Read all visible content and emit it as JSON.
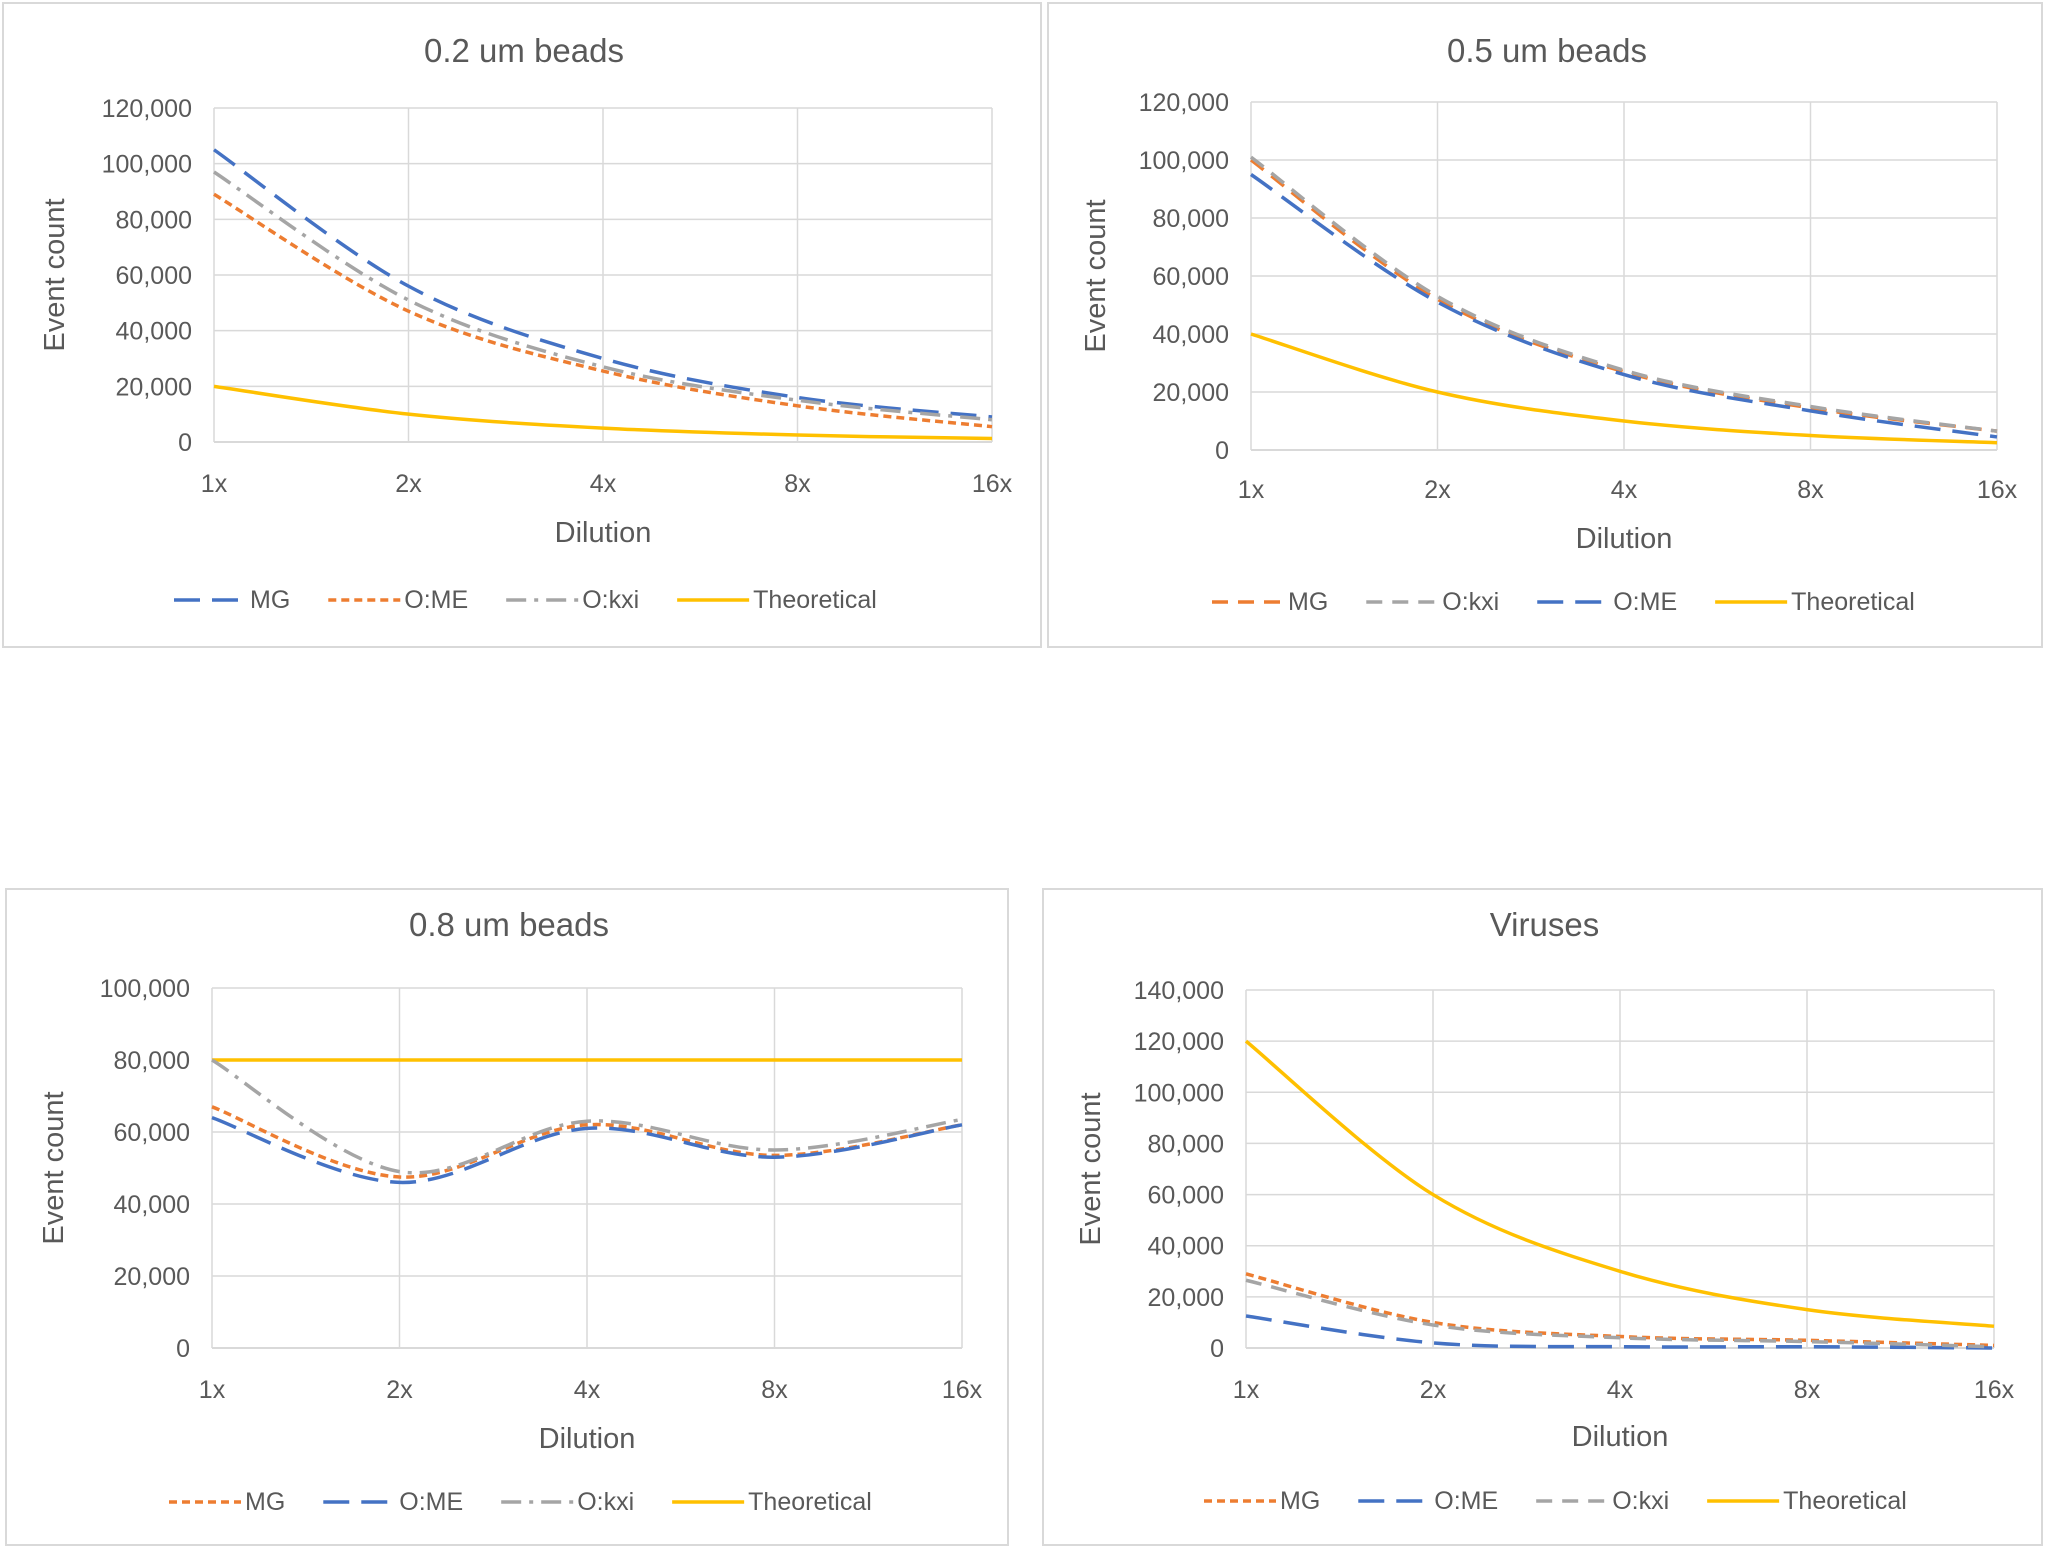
{
  "colors": {
    "blue": "#4472c4",
    "orange": "#ed7d31",
    "gray": "#a5a5a5",
    "yellow": "#ffc000",
    "grid": "#d9d9d9",
    "text": "#595959"
  },
  "chart_data": [
    {
      "type": "line",
      "title": "0.2 um beads",
      "xlabel": "Dilution",
      "ylabel": "Event count",
      "categories": [
        "1x",
        "2x",
        "4x",
        "8x",
        "16x"
      ],
      "ylim": [
        0,
        120000
      ],
      "yticks": [
        0,
        20000,
        40000,
        60000,
        80000,
        100000,
        120000
      ],
      "ytick_labels": [
        "0",
        "20,000",
        "40,000",
        "60,000",
        "80,000",
        "100,000",
        "120,000"
      ],
      "legend_position": "bottom",
      "series": [
        {
          "name": "MG",
          "color": "blue",
          "dash": "long",
          "values": [
            105000,
            56000,
            30000,
            16000,
            9000
          ]
        },
        {
          "name": "O:ME",
          "color": "orange",
          "dash": "short",
          "values": [
            89000,
            47000,
            25500,
            13000,
            5500
          ]
        },
        {
          "name": "O:kxi",
          "color": "gray",
          "dash": "dashdot",
          "values": [
            97000,
            51000,
            27000,
            15000,
            8000
          ]
        },
        {
          "name": "Theoretical",
          "color": "yellow",
          "dash": "solid",
          "values": [
            20000,
            10000,
            5000,
            2500,
            1250
          ]
        }
      ]
    },
    {
      "type": "line",
      "title": "0.5 um beads",
      "xlabel": "Dilution",
      "ylabel": "Event count",
      "categories": [
        "1x",
        "2x",
        "4x",
        "8x",
        "16x"
      ],
      "ylim": [
        0,
        120000
      ],
      "yticks": [
        0,
        20000,
        40000,
        60000,
        80000,
        100000,
        120000
      ],
      "ytick_labels": [
        "0",
        "20,000",
        "40,000",
        "60,000",
        "80,000",
        "100,000",
        "120,000"
      ],
      "legend_position": "bottom",
      "series": [
        {
          "name": "MG",
          "color": "orange",
          "dash": "medium",
          "values": [
            100000,
            52000,
            27000,
            14500,
            6500
          ]
        },
        {
          "name": "O:kxi",
          "color": "gray",
          "dash": "medium",
          "values": [
            101000,
            53000,
            27500,
            15000,
            6500
          ]
        },
        {
          "name": "O:ME",
          "color": "blue",
          "dash": "long",
          "values": [
            95000,
            51000,
            26000,
            13500,
            4500
          ]
        },
        {
          "name": "Theoretical",
          "color": "yellow",
          "dash": "solid",
          "values": [
            40000,
            20000,
            10000,
            5000,
            2500
          ]
        }
      ]
    },
    {
      "type": "line",
      "title": "0.8 um beads",
      "xlabel": "Dilution",
      "ylabel": "Event count",
      "categories": [
        "1x",
        "2x",
        "4x",
        "8x",
        "16x"
      ],
      "ylim": [
        0,
        100000
      ],
      "yticks": [
        0,
        20000,
        40000,
        60000,
        80000,
        100000
      ],
      "ytick_labels": [
        "0",
        "20,000",
        "40,000",
        "60,000",
        "80,000",
        "100,000"
      ],
      "legend_position": "bottom",
      "series": [
        {
          "name": "MG",
          "color": "orange",
          "dash": "short",
          "values": [
            67000,
            47500,
            62000,
            53500,
            62000
          ]
        },
        {
          "name": "O:ME",
          "color": "blue",
          "dash": "long",
          "values": [
            64000,
            46000,
            61000,
            53000,
            62000
          ]
        },
        {
          "name": "O:kxi",
          "color": "gray",
          "dash": "dashdot",
          "values": [
            80000,
            49000,
            63000,
            55000,
            63500
          ]
        },
        {
          "name": "Theoretical",
          "color": "yellow",
          "dash": "solid",
          "values": [
            80000,
            80000,
            80000,
            80000,
            80000
          ]
        }
      ]
    },
    {
      "type": "line",
      "title": "Viruses",
      "xlabel": "Dilution",
      "ylabel": "Event count",
      "categories": [
        "1x",
        "2x",
        "4x",
        "8x",
        "16x"
      ],
      "ylim": [
        0,
        140000
      ],
      "yticks": [
        0,
        20000,
        40000,
        60000,
        80000,
        100000,
        120000,
        140000
      ],
      "ytick_labels": [
        "0",
        "20,000",
        "40,000",
        "60,000",
        "80,000",
        "100,000",
        "120,000",
        "140,000"
      ],
      "legend_position": "bottom",
      "series": [
        {
          "name": "MG",
          "color": "orange",
          "dash": "short",
          "values": [
            29000,
            10000,
            4500,
            3000,
            1000
          ]
        },
        {
          "name": "O:ME",
          "color": "blue",
          "dash": "long",
          "values": [
            12500,
            2000,
            500,
            500,
            0
          ]
        },
        {
          "name": "O:kxi",
          "color": "gray",
          "dash": "medium",
          "values": [
            26500,
            9000,
            4000,
            2500,
            500
          ]
        },
        {
          "name": "Theoretical",
          "color": "yellow",
          "dash": "solid",
          "values": [
            120000,
            60000,
            30000,
            15000,
            8500
          ]
        }
      ]
    }
  ]
}
